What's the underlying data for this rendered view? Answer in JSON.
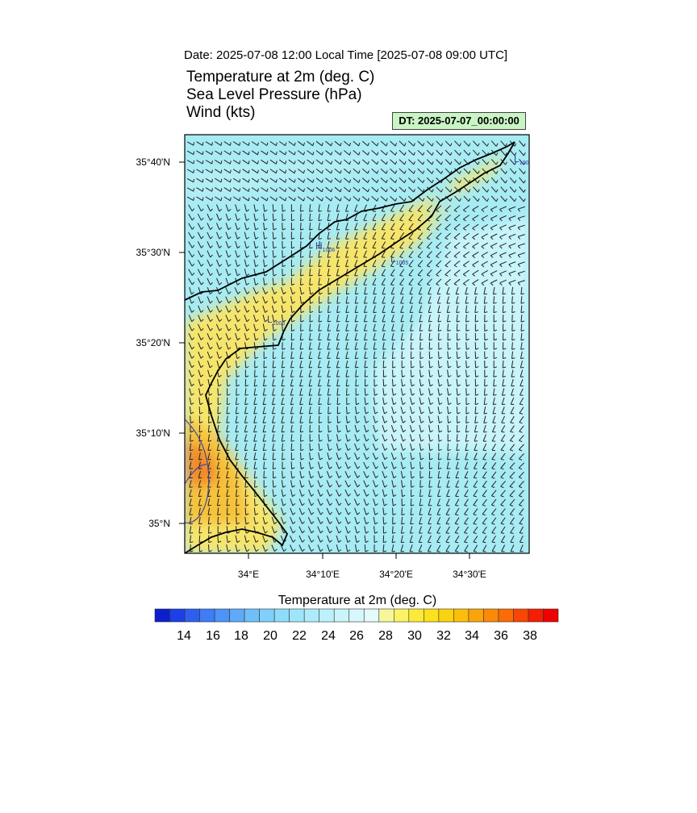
{
  "header": {
    "date_line": "Date: 2025-07-08  12:00 Local Time [2025-07-08  09:00 UTC]",
    "title_lines": [
      "Temperature at 2m   (deg. C)",
      "Sea Level Pressure   (hPa)",
      "Wind   (kts)"
    ],
    "dt_badge": "DT: 2025-07-07_00:00:00"
  },
  "map": {
    "lat_labels": [
      "35°40'N",
      "35°30'N",
      "35°20'N",
      "35°10'N",
      "35°N"
    ],
    "lon_labels": [
      "34°E",
      "34°10'E",
      "34°20'E",
      "34°30'E"
    ],
    "pressure_centers": [
      {
        "type": "H",
        "value": "1006"
      },
      {
        "type": "L",
        "value": "1005"
      },
      {
        "type": "L",
        "value": "1006"
      },
      {
        "type": "L",
        "value": "100"
      }
    ],
    "colors": {
      "sea": "#a7ebf3",
      "sea_light": "#c8f4fa",
      "land_cool": "#b3eef6",
      "warm_band": "#f6e56c",
      "hot": "#f6c23a",
      "hottest": "#f08a2a",
      "coast": "#000000",
      "barb": "#222222",
      "contour": "#2a43a8"
    }
  },
  "colorbar": {
    "title": "Temperature at 2m  (deg. C)",
    "tick_labels": [
      "14",
      "16",
      "18",
      "20",
      "22",
      "24",
      "26",
      "28",
      "30",
      "32",
      "34",
      "36",
      "38"
    ],
    "colors": [
      "#0b1fcf",
      "#1c3fe6",
      "#2c5ff0",
      "#3d7df5",
      "#4c94f7",
      "#5eaaf8",
      "#6fc0f9",
      "#7fd0fa",
      "#8fdcfa",
      "#9fe5fa",
      "#aeebfa",
      "#bcf0fa",
      "#c9f4fa",
      "#d6f7fb",
      "#e4fafb",
      "#f7f79a",
      "#fbf266",
      "#fbea3a",
      "#fce11c",
      "#fbd20f",
      "#fbbf0b",
      "#fba409",
      "#fb8a08",
      "#fb6b06",
      "#fa4504",
      "#f51d02",
      "#ee0000"
    ]
  }
}
